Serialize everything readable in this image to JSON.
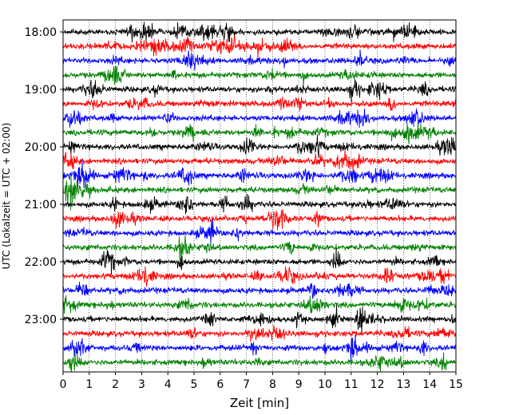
{
  "chart_data": {
    "type": "line",
    "title": "",
    "xlabel": "Zeit  [min]",
    "ylabel": "UTC (Lokalzeit = UTC + 02:00)",
    "xlim": [
      0,
      15
    ],
    "x_ticks": [
      "0",
      "1",
      "2",
      "3",
      "4",
      "5",
      "6",
      "7",
      "8",
      "9",
      "10",
      "11",
      "12",
      "13",
      "14",
      "15"
    ],
    "y_ticks": [
      "18:00",
      "19:00",
      "20:00",
      "21:00",
      "22:00",
      "23:00"
    ],
    "grid": "vertical dotted",
    "trace_interval_minutes": 15,
    "start_time": "18:00",
    "end_time": "23:45",
    "trace_count": 24,
    "colors": [
      "#000000",
      "#ff0000",
      "#0000ff",
      "#008000"
    ]
  }
}
